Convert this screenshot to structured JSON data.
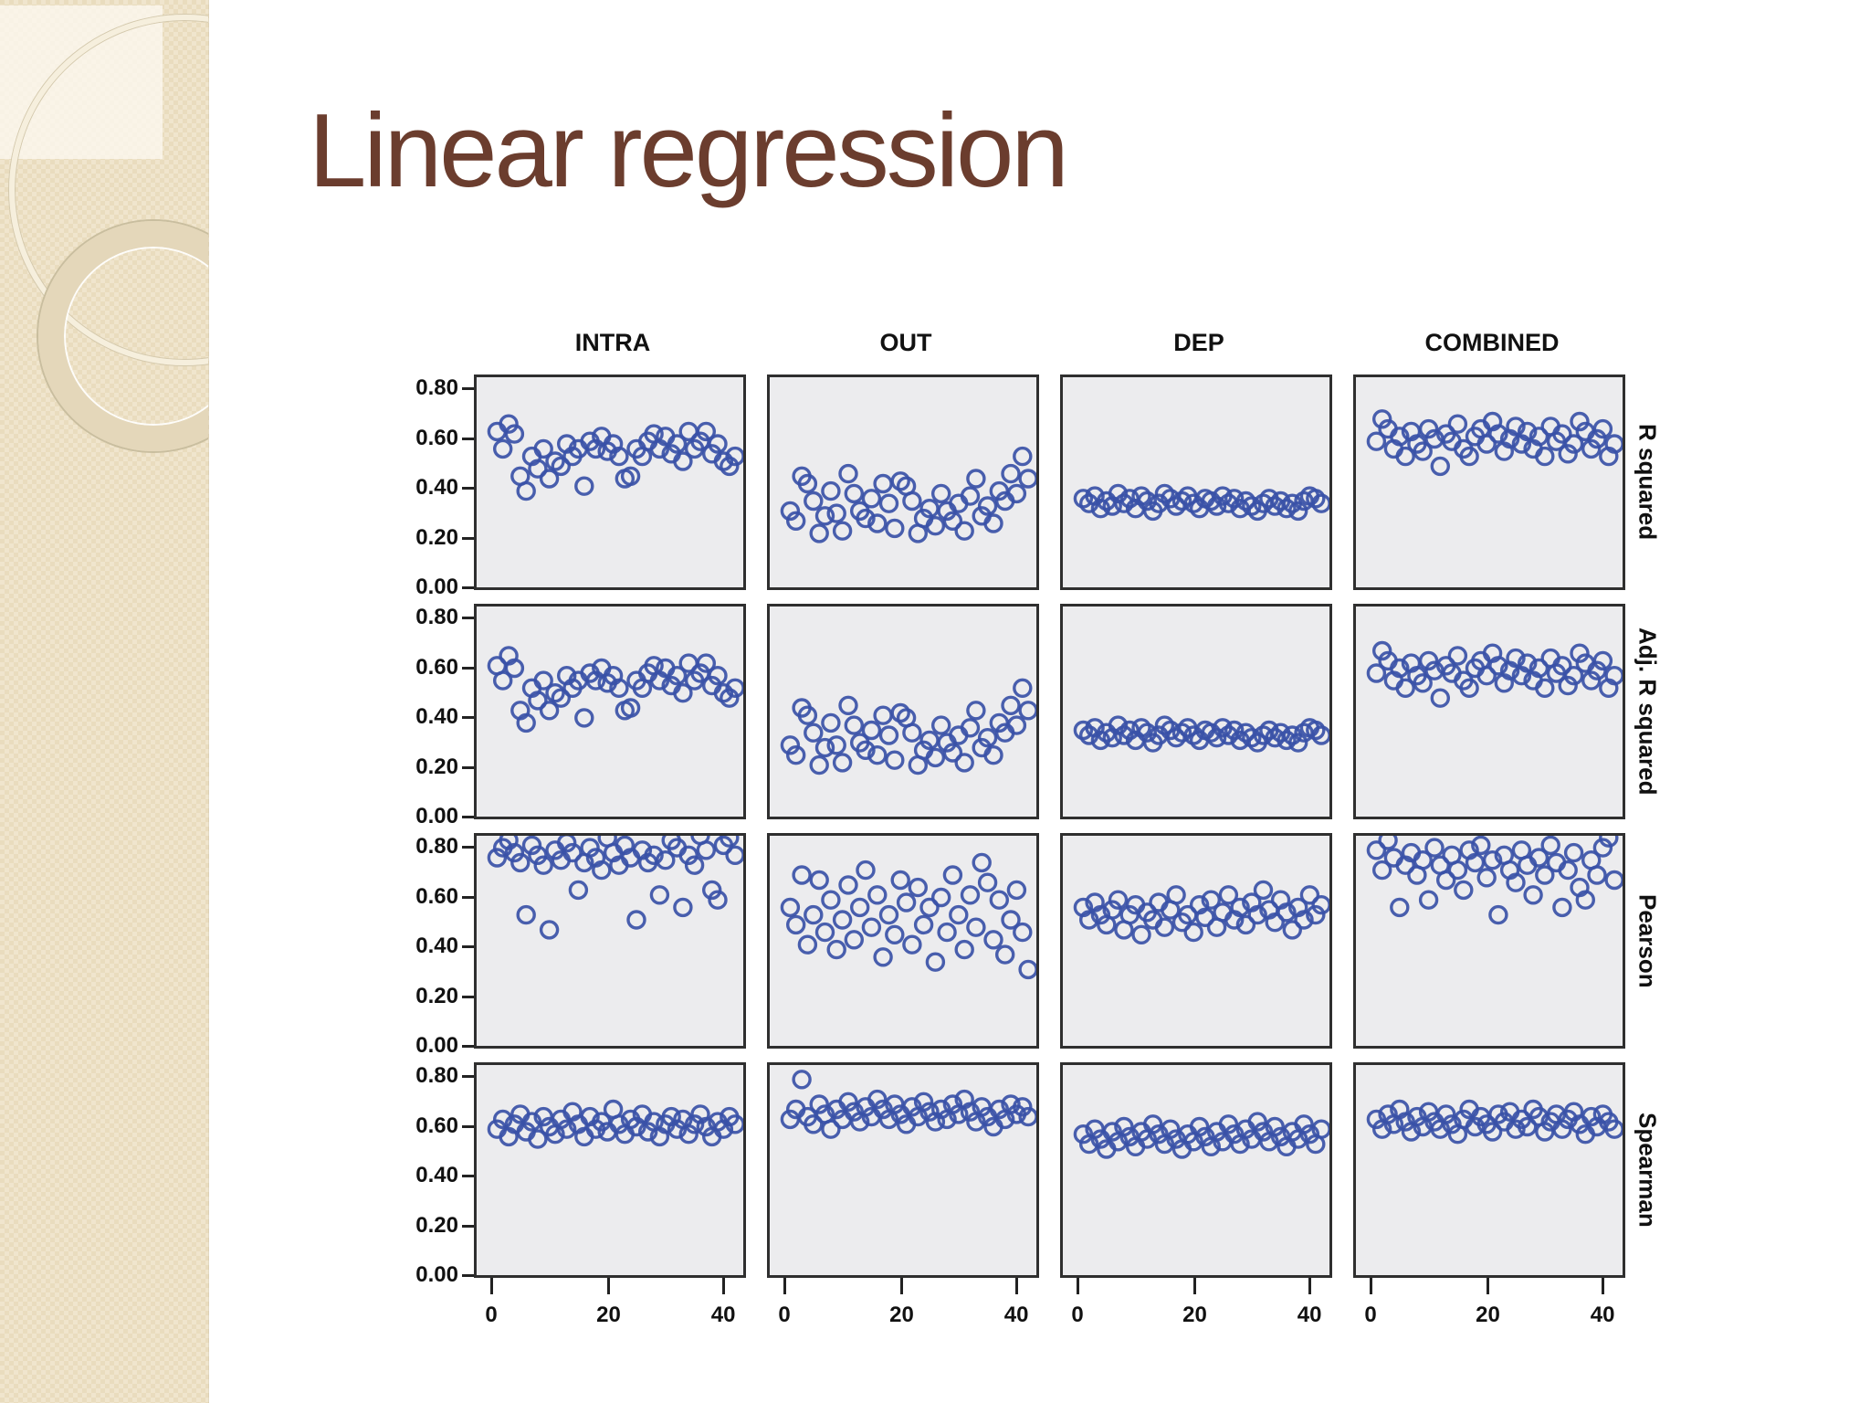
{
  "title": "Linear regression",
  "colors": {
    "title_text": "#6b3d2e",
    "sidebar_beige": "#ecdfc3",
    "panel_background": "#ececee",
    "panel_border": "#2f2f2f",
    "point_stroke": "#3a51a7",
    "label_text": "#111111"
  },
  "figure": {
    "columns": [
      "INTRA",
      "OUT",
      "DEP",
      "COMBINED"
    ],
    "rows": [
      "R squared",
      "Adj. R squared",
      "Pearson",
      "Spearman"
    ],
    "y_tick_labels": [
      "0.80",
      "0.60",
      "0.40",
      "0.20",
      "0.00"
    ],
    "x_tick_labels": [
      "0",
      "20",
      "40"
    ]
  },
  "chart_data": {
    "type": "scatter",
    "layout": "4x4-panel-matrix",
    "columns": [
      "INTRA",
      "OUT",
      "DEP",
      "COMBINED"
    ],
    "rows": [
      "R squared",
      "Adj. R squared",
      "Pearson",
      "Spearman"
    ],
    "marker": "open-circle",
    "marker_color": "#3a51a7",
    "grid": false,
    "x_ticks": [
      0,
      20,
      40
    ],
    "y_ticks": [
      0.0,
      0.2,
      0.4,
      0.6,
      0.8
    ],
    "xlim": [
      -2.5,
      44.5
    ],
    "ylim": [
      0,
      0.85
    ],
    "x": [
      1,
      2,
      3,
      4,
      5,
      6,
      7,
      8,
      9,
      10,
      11,
      12,
      13,
      14,
      15,
      16,
      17,
      18,
      19,
      20,
      21,
      22,
      23,
      24,
      25,
      26,
      27,
      28,
      29,
      30,
      31,
      32,
      33,
      34,
      35,
      36,
      37,
      38,
      39,
      40,
      41,
      42
    ],
    "panels": [
      {
        "row": "R squared",
        "column": "INTRA",
        "y": [
          0.62,
          0.55,
          0.65,
          0.61,
          0.44,
          0.38,
          0.52,
          0.47,
          0.55,
          0.43,
          0.5,
          0.48,
          0.57,
          0.52,
          0.55,
          0.4,
          0.58,
          0.55,
          0.6,
          0.54,
          0.57,
          0.52,
          0.43,
          0.44,
          0.55,
          0.52,
          0.58,
          0.61,
          0.55,
          0.6,
          0.53,
          0.57,
          0.5,
          0.62,
          0.55,
          0.58,
          0.62,
          0.53,
          0.57,
          0.5,
          0.48,
          0.52
        ]
      },
      {
        "row": "R squared",
        "column": "OUT",
        "y": [
          0.3,
          0.26,
          0.44,
          0.41,
          0.34,
          0.21,
          0.28,
          0.38,
          0.29,
          0.22,
          0.45,
          0.37,
          0.3,
          0.27,
          0.35,
          0.25,
          0.41,
          0.33,
          0.23,
          0.42,
          0.4,
          0.34,
          0.21,
          0.27,
          0.31,
          0.24,
          0.37,
          0.3,
          0.26,
          0.33,
          0.22,
          0.36,
          0.43,
          0.28,
          0.32,
          0.25,
          0.38,
          0.34,
          0.45,
          0.37,
          0.52,
          0.43
        ]
      },
      {
        "row": "R squared",
        "column": "DEP",
        "y": [
          0.35,
          0.33,
          0.36,
          0.31,
          0.34,
          0.32,
          0.37,
          0.33,
          0.35,
          0.31,
          0.36,
          0.34,
          0.3,
          0.33,
          0.37,
          0.35,
          0.32,
          0.34,
          0.36,
          0.33,
          0.31,
          0.35,
          0.34,
          0.32,
          0.36,
          0.33,
          0.35,
          0.31,
          0.34,
          0.32,
          0.3,
          0.33,
          0.35,
          0.32,
          0.34,
          0.31,
          0.33,
          0.3,
          0.34,
          0.36,
          0.35,
          0.33
        ]
      },
      {
        "row": "R squared",
        "column": "COMBINED",
        "y": [
          0.58,
          0.67,
          0.63,
          0.55,
          0.6,
          0.52,
          0.62,
          0.57,
          0.54,
          0.63,
          0.59,
          0.48,
          0.61,
          0.58,
          0.65,
          0.55,
          0.52,
          0.6,
          0.63,
          0.57,
          0.66,
          0.61,
          0.54,
          0.59,
          0.64,
          0.57,
          0.62,
          0.55,
          0.6,
          0.52,
          0.64,
          0.58,
          0.61,
          0.53,
          0.57,
          0.66,
          0.62,
          0.55,
          0.59,
          0.63,
          0.52,
          0.57
        ]
      },
      {
        "row": "Adj. R squared",
        "column": "INTRA",
        "y": [
          0.6,
          0.54,
          0.64,
          0.59,
          0.42,
          0.37,
          0.51,
          0.46,
          0.54,
          0.42,
          0.49,
          0.47,
          0.56,
          0.51,
          0.54,
          0.39,
          0.57,
          0.54,
          0.59,
          0.53,
          0.56,
          0.51,
          0.42,
          0.43,
          0.54,
          0.51,
          0.57,
          0.6,
          0.54,
          0.59,
          0.52,
          0.56,
          0.49,
          0.61,
          0.54,
          0.57,
          0.61,
          0.52,
          0.56,
          0.49,
          0.47,
          0.51
        ]
      },
      {
        "row": "Adj. R squared",
        "column": "OUT",
        "y": [
          0.28,
          0.24,
          0.43,
          0.4,
          0.33,
          0.2,
          0.27,
          0.37,
          0.28,
          0.21,
          0.44,
          0.36,
          0.29,
          0.26,
          0.34,
          0.24,
          0.4,
          0.32,
          0.22,
          0.41,
          0.39,
          0.33,
          0.2,
          0.26,
          0.3,
          0.23,
          0.36,
          0.29,
          0.25,
          0.32,
          0.21,
          0.35,
          0.42,
          0.27,
          0.31,
          0.24,
          0.37,
          0.33,
          0.44,
          0.36,
          0.51,
          0.42
        ]
      },
      {
        "row": "Adj. R squared",
        "column": "DEP",
        "y": [
          0.34,
          0.32,
          0.35,
          0.3,
          0.33,
          0.31,
          0.36,
          0.32,
          0.34,
          0.3,
          0.35,
          0.33,
          0.29,
          0.32,
          0.36,
          0.34,
          0.31,
          0.33,
          0.35,
          0.32,
          0.3,
          0.34,
          0.33,
          0.31,
          0.35,
          0.32,
          0.34,
          0.3,
          0.33,
          0.31,
          0.29,
          0.32,
          0.34,
          0.31,
          0.33,
          0.3,
          0.32,
          0.29,
          0.33,
          0.35,
          0.34,
          0.32
        ]
      },
      {
        "row": "Adj. R squared",
        "column": "COMBINED",
        "y": [
          0.57,
          0.66,
          0.62,
          0.54,
          0.59,
          0.51,
          0.61,
          0.56,
          0.53,
          0.62,
          0.58,
          0.47,
          0.6,
          0.57,
          0.64,
          0.54,
          0.51,
          0.59,
          0.62,
          0.56,
          0.65,
          0.6,
          0.53,
          0.58,
          0.63,
          0.56,
          0.61,
          0.54,
          0.59,
          0.51,
          0.63,
          0.57,
          0.6,
          0.52,
          0.56,
          0.65,
          0.61,
          0.54,
          0.58,
          0.62,
          0.51,
          0.56
        ]
      },
      {
        "row": "Pearson",
        "column": "INTRA",
        "y": [
          0.75,
          0.79,
          0.82,
          0.77,
          0.73,
          0.52,
          0.8,
          0.76,
          0.72,
          0.46,
          0.78,
          0.74,
          0.81,
          0.77,
          0.62,
          0.73,
          0.79,
          0.75,
          0.7,
          0.83,
          0.77,
          0.72,
          0.8,
          0.75,
          0.5,
          0.78,
          0.73,
          0.76,
          0.6,
          0.74,
          0.82,
          0.79,
          0.55,
          0.76,
          0.72,
          0.84,
          0.78,
          0.62,
          0.58,
          0.8,
          0.83,
          0.76
        ]
      },
      {
        "row": "Pearson",
        "column": "OUT",
        "y": [
          0.55,
          0.48,
          0.68,
          0.4,
          0.52,
          0.66,
          0.45,
          0.58,
          0.38,
          0.5,
          0.64,
          0.42,
          0.55,
          0.7,
          0.47,
          0.6,
          0.35,
          0.52,
          0.44,
          0.66,
          0.57,
          0.4,
          0.63,
          0.48,
          0.55,
          0.33,
          0.59,
          0.45,
          0.68,
          0.52,
          0.38,
          0.6,
          0.47,
          0.73,
          0.65,
          0.42,
          0.58,
          0.36,
          0.5,
          0.62,
          0.45,
          0.3
        ]
      },
      {
        "row": "Pearson",
        "column": "DEP",
        "y": [
          0.55,
          0.5,
          0.57,
          0.52,
          0.48,
          0.54,
          0.58,
          0.46,
          0.52,
          0.56,
          0.44,
          0.53,
          0.5,
          0.57,
          0.47,
          0.54,
          0.6,
          0.49,
          0.52,
          0.45,
          0.56,
          0.51,
          0.58,
          0.47,
          0.53,
          0.6,
          0.5,
          0.55,
          0.48,
          0.57,
          0.52,
          0.62,
          0.54,
          0.49,
          0.58,
          0.53,
          0.46,
          0.55,
          0.5,
          0.6,
          0.52,
          0.56
        ]
      },
      {
        "row": "Pearson",
        "column": "COMBINED",
        "y": [
          0.78,
          0.7,
          0.82,
          0.75,
          0.55,
          0.72,
          0.77,
          0.68,
          0.74,
          0.58,
          0.79,
          0.72,
          0.66,
          0.76,
          0.7,
          0.62,
          0.78,
          0.73,
          0.8,
          0.67,
          0.74,
          0.52,
          0.76,
          0.7,
          0.65,
          0.78,
          0.72,
          0.6,
          0.75,
          0.68,
          0.8,
          0.73,
          0.55,
          0.7,
          0.77,
          0.63,
          0.58,
          0.74,
          0.68,
          0.79,
          0.83,
          0.66
        ]
      },
      {
        "row": "Spearman",
        "column": "INTRA",
        "y": [
          0.58,
          0.62,
          0.55,
          0.6,
          0.64,
          0.57,
          0.61,
          0.54,
          0.63,
          0.59,
          0.56,
          0.62,
          0.58,
          0.65,
          0.6,
          0.55,
          0.63,
          0.58,
          0.61,
          0.57,
          0.66,
          0.6,
          0.56,
          0.62,
          0.59,
          0.64,
          0.57,
          0.61,
          0.55,
          0.6,
          0.63,
          0.58,
          0.62,
          0.56,
          0.6,
          0.64,
          0.59,
          0.55,
          0.61,
          0.58,
          0.63,
          0.6
        ]
      },
      {
        "row": "Spearman",
        "column": "OUT",
        "y": [
          0.62,
          0.66,
          0.78,
          0.63,
          0.6,
          0.68,
          0.64,
          0.58,
          0.66,
          0.62,
          0.69,
          0.65,
          0.61,
          0.67,
          0.63,
          0.7,
          0.66,
          0.62,
          0.68,
          0.64,
          0.6,
          0.67,
          0.63,
          0.69,
          0.65,
          0.61,
          0.66,
          0.62,
          0.68,
          0.64,
          0.7,
          0.65,
          0.61,
          0.67,
          0.63,
          0.59,
          0.66,
          0.62,
          0.68,
          0.64,
          0.67,
          0.63
        ]
      },
      {
        "row": "Spearman",
        "column": "DEP",
        "y": [
          0.56,
          0.52,
          0.58,
          0.54,
          0.5,
          0.57,
          0.53,
          0.59,
          0.55,
          0.51,
          0.57,
          0.54,
          0.6,
          0.56,
          0.52,
          0.58,
          0.54,
          0.5,
          0.56,
          0.53,
          0.59,
          0.55,
          0.51,
          0.57,
          0.53,
          0.6,
          0.56,
          0.52,
          0.58,
          0.54,
          0.61,
          0.57,
          0.53,
          0.59,
          0.55,
          0.51,
          0.57,
          0.54,
          0.6,
          0.56,
          0.52,
          0.58
        ]
      },
      {
        "row": "Spearman",
        "column": "COMBINED",
        "y": [
          0.62,
          0.58,
          0.64,
          0.6,
          0.66,
          0.61,
          0.57,
          0.63,
          0.59,
          0.65,
          0.61,
          0.58,
          0.64,
          0.6,
          0.56,
          0.62,
          0.66,
          0.59,
          0.63,
          0.6,
          0.57,
          0.64,
          0.61,
          0.65,
          0.58,
          0.62,
          0.59,
          0.66,
          0.63,
          0.57,
          0.61,
          0.64,
          0.58,
          0.62,
          0.65,
          0.6,
          0.56,
          0.63,
          0.59,
          0.64,
          0.61,
          0.58
        ]
      }
    ]
  }
}
